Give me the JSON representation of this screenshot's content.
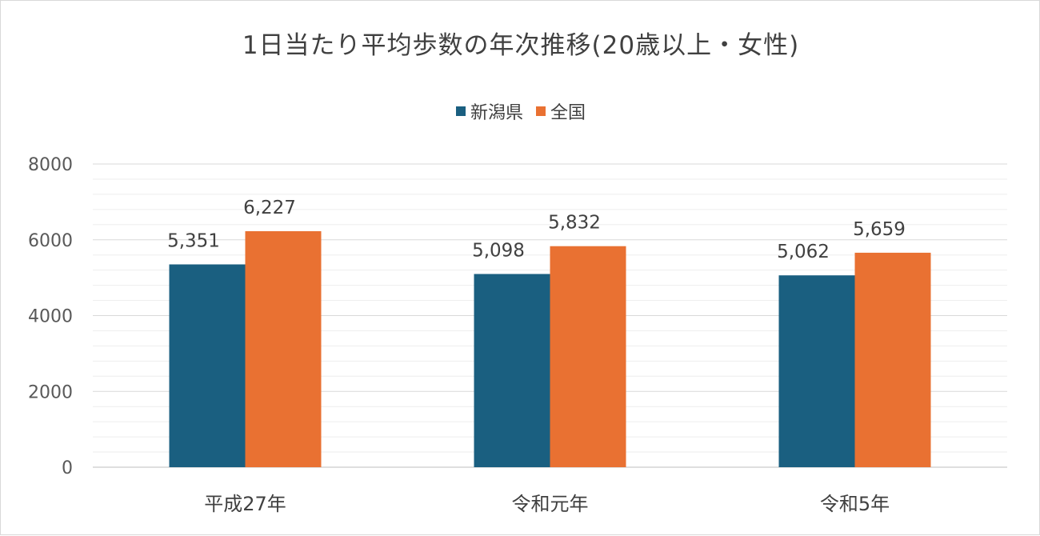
{
  "chart_data": {
    "type": "bar",
    "title": "1日当たり平均歩数の年次推移(20歳以上・女性)",
    "categories": [
      "平成27年",
      "令和元年",
      "令和5年"
    ],
    "series": [
      {
        "name": "新潟県",
        "values": [
          5351,
          5098,
          5062
        ],
        "labels": [
          "5,351",
          "5,098",
          "5,062"
        ],
        "color": "#1a5f80"
      },
      {
        "name": "全国",
        "values": [
          6227,
          5832,
          5659
        ],
        "labels": [
          "6,227",
          "5,832",
          "5,659"
        ],
        "color": "#e97132"
      }
    ],
    "ylim": [
      0,
      8000
    ],
    "yticks": [
      "0",
      "2000",
      "4000",
      "6000",
      "8000"
    ],
    "grid": true,
    "legend_position": "top"
  }
}
